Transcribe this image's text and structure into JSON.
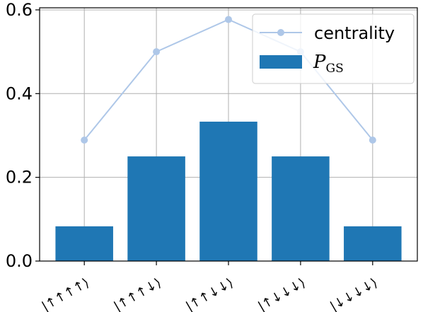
{
  "chart_data": {
    "type": "bar",
    "categories": [
      "|↑↑↑↑⟩",
      "|↑↑↑↓⟩",
      "|↑↑↓↓⟩",
      "|↑↓↓↓⟩",
      "|↓↓↓↓⟩"
    ],
    "series": [
      {
        "name": "centrality",
        "kind": "line",
        "values": [
          0.289,
          0.5,
          0.577,
          0.5,
          0.289
        ],
        "color": "#aec7e8"
      },
      {
        "name": "P_GS",
        "kind": "bar",
        "values": [
          0.083,
          0.25,
          0.333,
          0.25,
          0.083
        ],
        "color": "#1f77b4"
      }
    ],
    "legend": {
      "placement": "top-right",
      "entries": [
        {
          "label": "centrality"
        },
        {
          "label_main": "P",
          "label_sub": "GS"
        }
      ]
    },
    "yticks": [
      "0.0",
      "0.2",
      "0.4",
      "0.6"
    ],
    "ylim": [
      0,
      0.605
    ],
    "grid": true,
    "title": "",
    "xlabel": "",
    "ylabel": ""
  }
}
